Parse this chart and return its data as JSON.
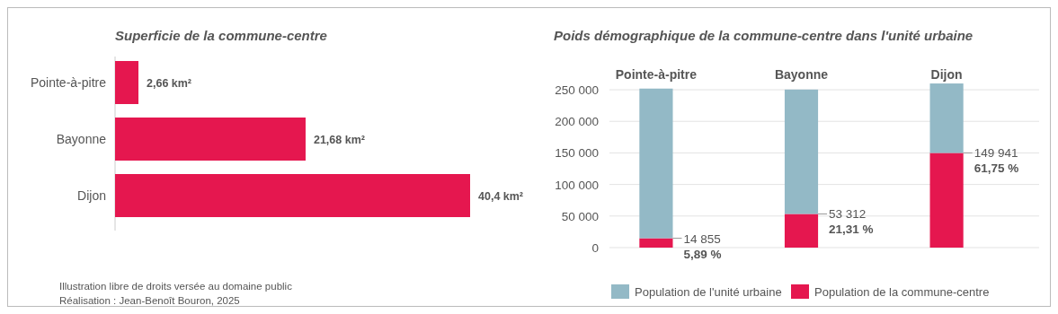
{
  "chart_data": [
    {
      "type": "bar",
      "orientation": "horizontal",
      "title": "Superficie de la commune-centre",
      "categories": [
        "Pointe-à-pitre",
        "Bayonne",
        "Dijon"
      ],
      "values": [
        2.66,
        21.68,
        40.4
      ],
      "color": "#e5174f",
      "value_labels": [
        "2,66 km²",
        "21,68 km²",
        "40,4 km²"
      ],
      "annotations": [
        "Illustration libre de droits versée au domaine public",
        "Réalisation : Jean-Benoît Bouron, 2025"
      ]
    },
    {
      "type": "bar",
      "stacked": true,
      "title": "Poids démographique de la commune-centre dans l'unité urbaine",
      "categories": [
        "Pointe-à-pitre",
        "Bayonne",
        "Dijon"
      ],
      "ylim": [
        0,
        260000
      ],
      "yticks": [
        {
          "value": 0,
          "label": "0"
        },
        {
          "value": 50000,
          "label": "50 000"
        },
        {
          "value": 100000,
          "label": "100 000"
        },
        {
          "value": 150000,
          "label": "150 000"
        },
        {
          "value": 200000,
          "label": "200 000"
        },
        {
          "value": 250000,
          "label": "250 000"
        }
      ],
      "grid": "y",
      "legend": "bottom",
      "series": [
        {
          "name": "Population de la commune-centre",
          "color": "#e5174f",
          "values": [
            14855,
            53312,
            149941
          ],
          "value_labels": [
            "14 855",
            "53 312",
            "149 941"
          ]
        },
        {
          "name": "Population de l'unité urbaine",
          "color": "#93b9c6",
          "values": [
            237000,
            197000,
            110000
          ]
        }
      ],
      "annotations": [
        "5,89 %",
        "21,31 %",
        "61,75 %"
      ]
    }
  ]
}
